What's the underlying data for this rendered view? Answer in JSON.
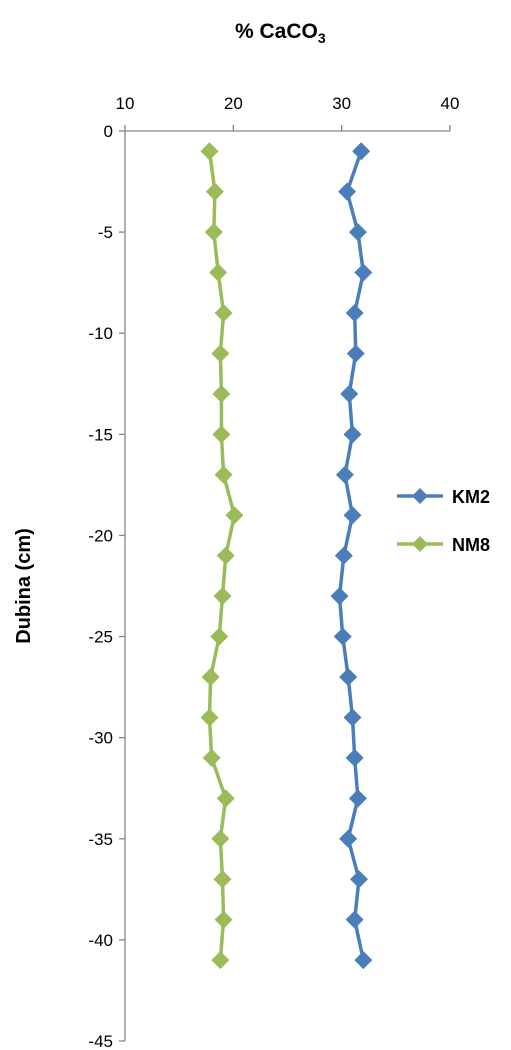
{
  "chart_data": {
    "type": "line",
    "title": {
      "main": "% CaCO",
      "subscript": "3"
    },
    "xlabel": "",
    "ylabel": "Dubina (cm)",
    "x_axis_position": "top",
    "xlim": [
      10,
      40
    ],
    "ylim": [
      -45,
      0
    ],
    "x_ticks": [
      10,
      20,
      30,
      40
    ],
    "y_ticks": [
      0,
      -5,
      -10,
      -15,
      -20,
      -25,
      -30,
      -35,
      -40,
      -45
    ],
    "grid": false,
    "legend_position": "right",
    "series": [
      {
        "name": "KM2",
        "color": "#4a7ebb",
        "marker": "diamond",
        "x": [
          31.8,
          30.5,
          31.5,
          32.0,
          31.2,
          31.3,
          30.7,
          31.0,
          30.3,
          31.0,
          30.2,
          29.8,
          30.1,
          30.6,
          31.0,
          31.2,
          31.5,
          30.6,
          31.6,
          31.2,
          32.0
        ],
        "y": [
          -1,
          -3,
          -5,
          -7,
          -9,
          -11,
          -13,
          -15,
          -17,
          -19,
          -21,
          -23,
          -25,
          -27,
          -29,
          -31,
          -33,
          -35,
          -37,
          -39,
          -41
        ]
      },
      {
        "name": "NM8",
        "color": "#9bbb59",
        "marker": "diamond",
        "x": [
          17.8,
          18.3,
          18.2,
          18.6,
          19.1,
          18.8,
          18.9,
          18.9,
          19.1,
          20.1,
          19.3,
          19.0,
          18.7,
          17.9,
          17.8,
          18.0,
          19.3,
          18.8,
          19.0,
          19.1,
          18.8
        ],
        "y": [
          -1,
          -3,
          -5,
          -7,
          -9,
          -11,
          -13,
          -15,
          -17,
          -19,
          -21,
          -23,
          -25,
          -27,
          -29,
          -31,
          -33,
          -35,
          -37,
          -39,
          -41
        ]
      }
    ]
  }
}
